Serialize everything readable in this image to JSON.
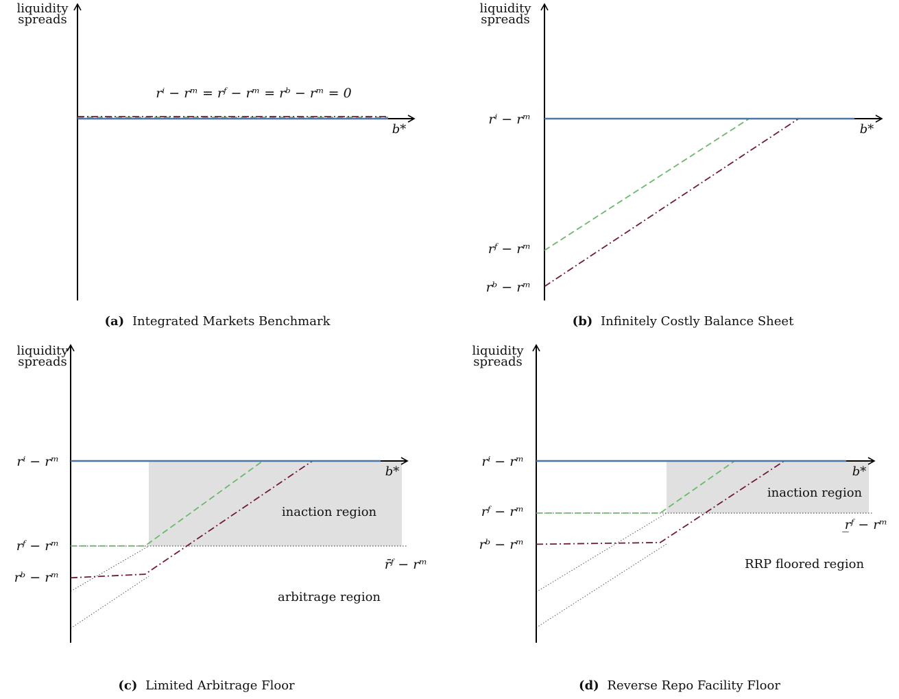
{
  "colors": {
    "ri": "#4a76a8",
    "rf": "#6ab86a",
    "rb": "#6e1a38",
    "shade": "#e0e0e0",
    "axis": "#000000",
    "dotted": "#555555"
  },
  "panels": {
    "a": {
      "ylabel_line1": "liquidity",
      "ylabel_line2": "spreads",
      "xlabel": "b*",
      "equation": "rⁱ − rᵐ = rᶠ − rᵐ = rᵇ − rᵐ = 0",
      "caption_tag": "(a)",
      "caption_text": "Integrated Markets Benchmark"
    },
    "b": {
      "ylabel_line1": "liquidity",
      "ylabel_line2": "spreads",
      "xlabel": "b*",
      "ri_label": "rⁱ − rᵐ",
      "rf_label": "rᶠ − rᵐ",
      "rb_label": "rᵇ − rᵐ",
      "caption_tag": "(b)",
      "caption_text": "Infinitely Costly Balance Sheet"
    },
    "c": {
      "ylabel_line1": "liquidity",
      "ylabel_line2": "spreads",
      "xlabel": "b*",
      "ri_label": "rⁱ − rᵐ",
      "rf_label": "rᶠ − rᵐ",
      "rb_label": "rᵇ − rᵐ",
      "rfbar_label": "r̄ᶠ − rᵐ",
      "inaction": "inaction region",
      "arbitrage": "arbitrage region",
      "caption_tag": "(c)",
      "caption_text": "Limited Arbitrage Floor"
    },
    "d": {
      "ylabel_line1": "liquidity",
      "ylabel_line2": "spreads",
      "xlabel": "b*",
      "ri_label": "rⁱ − rᵐ",
      "rf_label": "rᶠ − rᵐ",
      "rb_label": "rᵇ − rᵐ",
      "rfunder_label": "r̲ᶠ − rᵐ",
      "inaction": "inaction region",
      "rrp": "RRP floored region",
      "caption_tag": "(d)",
      "caption_text": "Reverse Repo Facility Floor"
    }
  },
  "chart_data": [
    {
      "type": "line",
      "panel": "a",
      "series": [
        {
          "key": "ri",
          "style": "solid",
          "values": [
            [
              0,
              0
            ],
            [
              1,
              0
            ]
          ]
        },
        {
          "key": "rf",
          "style": "dashed",
          "values": [
            [
              0,
              0
            ],
            [
              1,
              0
            ]
          ]
        },
        {
          "key": "rb",
          "style": "dashdot",
          "values": [
            [
              0,
              0
            ],
            [
              1,
              0
            ]
          ]
        }
      ]
    },
    {
      "type": "line",
      "panel": "b",
      "series": [
        {
          "key": "ri",
          "style": "solid",
          "values": [
            [
              0,
              0
            ],
            [
              1,
              0
            ]
          ]
        },
        {
          "key": "rf",
          "style": "dashed",
          "values": [
            [
              0,
              -0.73
            ],
            [
              0.66,
              0
            ],
            [
              1,
              0
            ]
          ]
        },
        {
          "key": "rb",
          "style": "dashdot",
          "values": [
            [
              0,
              -0.93
            ],
            [
              0.82,
              0
            ],
            [
              1,
              0
            ]
          ]
        }
      ]
    },
    {
      "type": "line",
      "panel": "c",
      "series": [
        {
          "key": "ri",
          "style": "solid",
          "values": [
            [
              0,
              0
            ],
            [
              1,
              0
            ]
          ]
        },
        {
          "key": "rf",
          "style": "dashed",
          "values": [
            [
              0,
              -0.48
            ],
            [
              0.24,
              -0.48
            ],
            [
              0.62,
              0
            ],
            [
              1,
              0
            ]
          ]
        },
        {
          "key": "rb",
          "style": "dashdot",
          "values": [
            [
              0,
              -0.66
            ],
            [
              0.24,
              -0.64
            ],
            [
              0.78,
              0
            ],
            [
              1,
              0
            ]
          ]
        }
      ]
    },
    {
      "type": "line",
      "panel": "d",
      "series": [
        {
          "key": "ri",
          "style": "solid",
          "values": [
            [
              0,
              0
            ],
            [
              1,
              0
            ]
          ]
        },
        {
          "key": "rf",
          "style": "dashed",
          "values": [
            [
              0,
              -0.3
            ],
            [
              0.4,
              -0.3
            ],
            [
              0.64,
              0
            ],
            [
              1,
              0
            ]
          ]
        },
        {
          "key": "rb",
          "style": "dashdot",
          "values": [
            [
              0,
              -0.48
            ],
            [
              0.4,
              -0.47
            ],
            [
              0.8,
              0
            ],
            [
              1,
              0
            ]
          ]
        }
      ]
    }
  ]
}
